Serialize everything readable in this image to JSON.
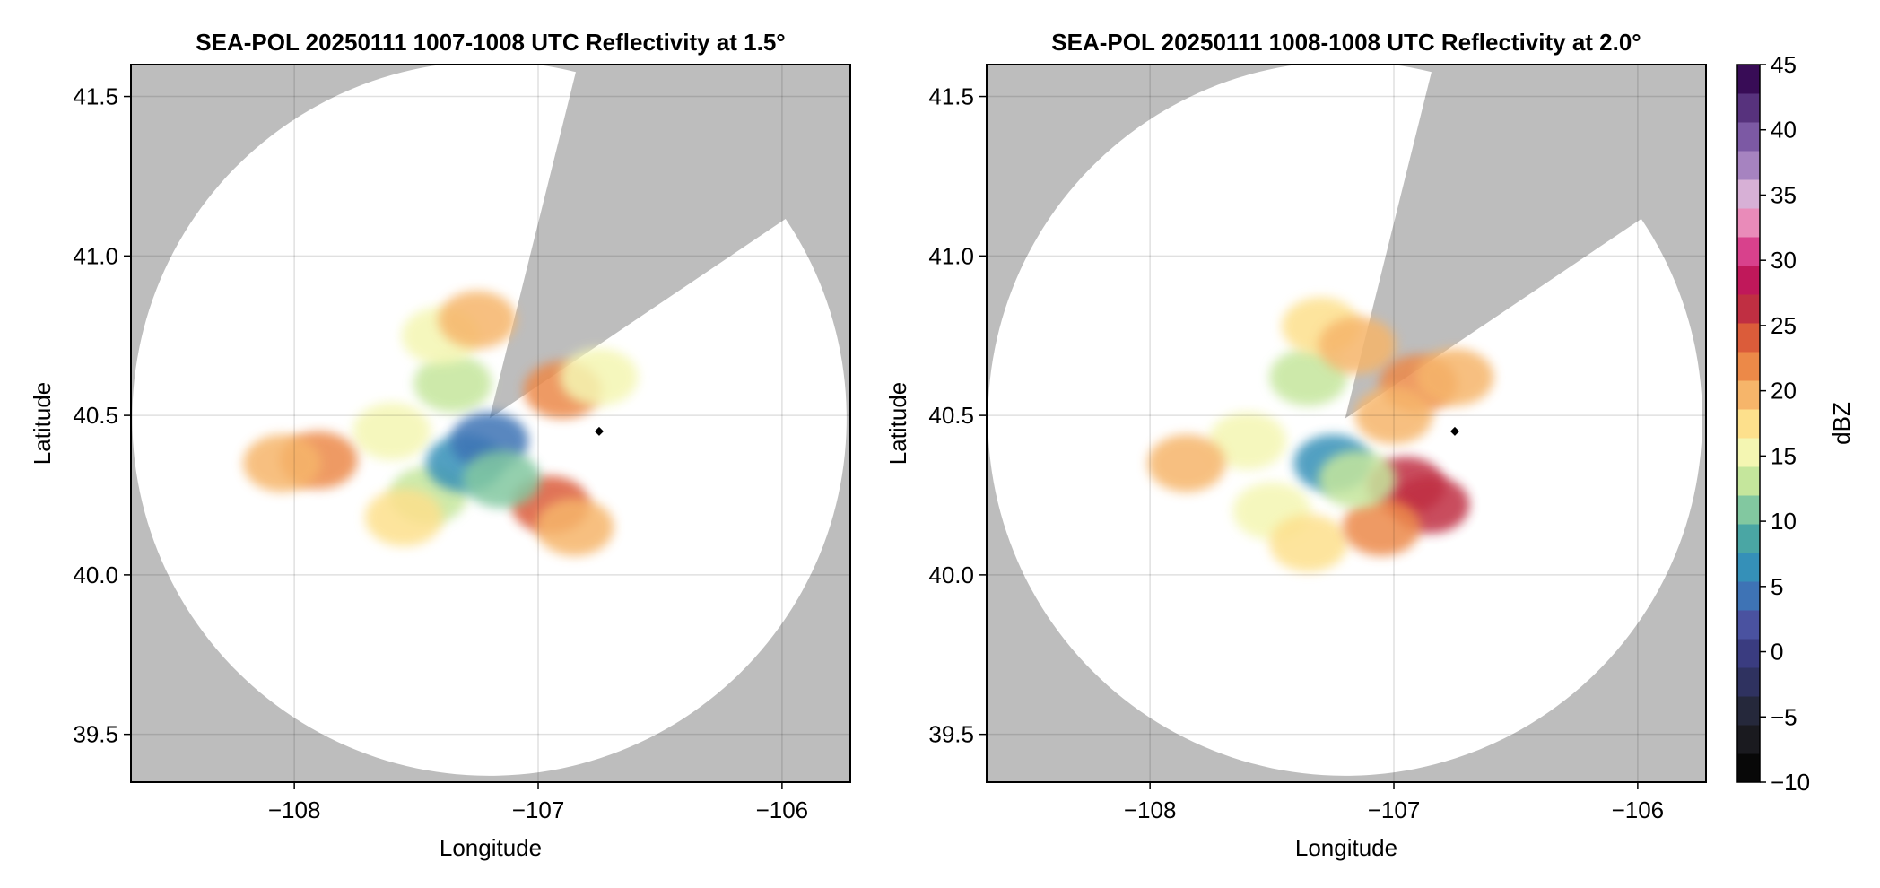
{
  "chart_data": [
    {
      "type": "heatmap",
      "title": "SEA-POL 20250111 1007-1008 UTC Reflectivity at 1.5°",
      "xlabel": "Longitude",
      "ylabel": "Latitude",
      "xlim": [
        -108.67,
        -105.72
      ],
      "ylim": [
        39.35,
        41.6
      ],
      "xticks": [
        -108,
        -107,
        -106
      ],
      "xtick_labels": [
        "−108",
        "−107",
        "−106"
      ],
      "yticks": [
        39.5,
        40.0,
        40.5,
        41.0,
        41.5
      ],
      "ytick_labels": [
        "39.5",
        "40.0",
        "40.5",
        "41.0",
        "41.5"
      ],
      "grid": true,
      "radar_center": [
        -107.2,
        40.49
      ],
      "coverage_radius_deg_lat": 1.12,
      "blocked_sectors_azimuth_deg": [
        [
          14,
          56
        ]
      ],
      "marker": {
        "lon": -106.75,
        "lat": 40.45
      },
      "echoes": [
        {
          "lon": -107.35,
          "lat": 40.6,
          "dbz": 12
        },
        {
          "lon": -107.4,
          "lat": 40.75,
          "dbz": 16
        },
        {
          "lon": -107.25,
          "lat": 40.8,
          "dbz": 20
        },
        {
          "lon": -107.6,
          "lat": 40.45,
          "dbz": 16
        },
        {
          "lon": -107.9,
          "lat": 40.36,
          "dbz": 22
        },
        {
          "lon": -108.05,
          "lat": 40.35,
          "dbz": 19
        },
        {
          "lon": -107.45,
          "lat": 40.25,
          "dbz": 14
        },
        {
          "lon": -107.55,
          "lat": 40.18,
          "dbz": 18
        },
        {
          "lon": -107.3,
          "lat": 40.35,
          "dbz": 6
        },
        {
          "lon": -107.2,
          "lat": 40.42,
          "dbz": 4
        },
        {
          "lon": -106.95,
          "lat": 40.22,
          "dbz": 24
        },
        {
          "lon": -106.85,
          "lat": 40.15,
          "dbz": 20
        },
        {
          "lon": -106.9,
          "lat": 40.58,
          "dbz": 22
        },
        {
          "lon": -106.75,
          "lat": 40.62,
          "dbz": 16
        },
        {
          "lon": -107.15,
          "lat": 40.3,
          "dbz": 10
        }
      ]
    },
    {
      "type": "heatmap",
      "title": "SEA-POL 20250111 1008-1008 UTC Reflectivity at 2.0°",
      "xlabel": "Longitude",
      "ylabel": "Latitude",
      "xlim": [
        -108.67,
        -105.72
      ],
      "ylim": [
        39.35,
        41.6
      ],
      "xticks": [
        -108,
        -107,
        -106
      ],
      "xtick_labels": [
        "−108",
        "−107",
        "−106"
      ],
      "yticks": [
        39.5,
        40.0,
        40.5,
        41.0,
        41.5
      ],
      "ytick_labels": [
        "39.5",
        "40.0",
        "40.5",
        "41.0",
        "41.5"
      ],
      "grid": true,
      "radar_center": [
        -107.2,
        40.49
      ],
      "coverage_radius_deg_lat": 1.12,
      "blocked_sectors_azimuth_deg": [
        [
          14,
          56
        ]
      ],
      "marker": {
        "lon": -106.75,
        "lat": 40.45
      },
      "echoes": [
        {
          "lon": -107.35,
          "lat": 40.62,
          "dbz": 12
        },
        {
          "lon": -107.3,
          "lat": 40.78,
          "dbz": 18
        },
        {
          "lon": -107.15,
          "lat": 40.72,
          "dbz": 20
        },
        {
          "lon": -107.6,
          "lat": 40.42,
          "dbz": 16
        },
        {
          "lon": -107.85,
          "lat": 40.35,
          "dbz": 19
        },
        {
          "lon": -107.5,
          "lat": 40.2,
          "dbz": 16
        },
        {
          "lon": -107.35,
          "lat": 40.1,
          "dbz": 17
        },
        {
          "lon": -107.25,
          "lat": 40.35,
          "dbz": 6
        },
        {
          "lon": -106.95,
          "lat": 40.28,
          "dbz": 27
        },
        {
          "lon": -106.85,
          "lat": 40.22,
          "dbz": 26
        },
        {
          "lon": -107.05,
          "lat": 40.15,
          "dbz": 22
        },
        {
          "lon": -106.9,
          "lat": 40.6,
          "dbz": 22
        },
        {
          "lon": -106.75,
          "lat": 40.62,
          "dbz": 20
        },
        {
          "lon": -107.0,
          "lat": 40.5,
          "dbz": 20
        },
        {
          "lon": -107.15,
          "lat": 40.3,
          "dbz": 14
        }
      ]
    }
  ],
  "colorbar": {
    "label": "dBZ",
    "min": -10,
    "max": 45,
    "levels": [
      -10,
      -7.5,
      -5,
      -2.5,
      0,
      2.5,
      5,
      7.5,
      10,
      12.5,
      15,
      17.5,
      20,
      22.5,
      25,
      27.5,
      30,
      32.5,
      35,
      37.5,
      40,
      42.5
    ],
    "colors": [
      "#080808",
      "#1a1a1f",
      "#25283b",
      "#2f3260",
      "#3a3c80",
      "#4a52a0",
      "#3e73b5",
      "#3590b8",
      "#4aa6a4",
      "#82c8a0",
      "#c5e69c",
      "#f4f6b2",
      "#fde08c",
      "#f6b56a",
      "#ec8948",
      "#db5c3a",
      "#c02f42",
      "#c0185a",
      "#d8418c",
      "#e98bb9",
      "#d7b0d6",
      "#a683c0",
      "#7c59a4",
      "#57327d",
      "#380c56"
    ],
    "ticks": [
      -10,
      -5,
      0,
      5,
      10,
      15,
      20,
      25,
      30,
      35,
      40,
      45
    ],
    "tick_labels": [
      "−10",
      "−5",
      "0",
      "5",
      "10",
      "15",
      "20",
      "25",
      "30",
      "35",
      "40",
      "45"
    ]
  }
}
